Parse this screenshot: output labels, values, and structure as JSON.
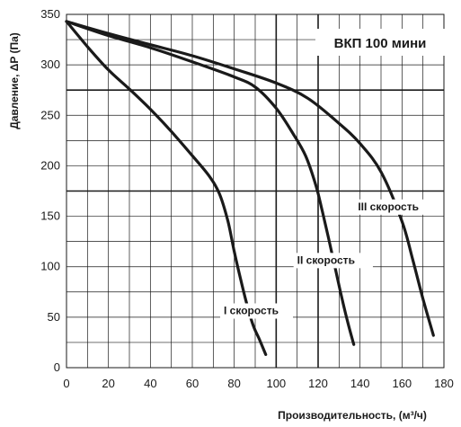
{
  "chart_data": {
    "type": "line",
    "title": "ВКП 100 мини",
    "xlabel": "Производительность, (м³/ч)",
    "ylabel": "Давление, ΔP (Па)",
    "xlim": [
      0,
      180
    ],
    "ylim": [
      0,
      350
    ],
    "x_ticks": [
      0,
      20,
      40,
      60,
      80,
      100,
      120,
      140,
      160,
      180
    ],
    "y_ticks": [
      0,
      50,
      100,
      150,
      200,
      250,
      300,
      350
    ],
    "grid": true,
    "reference_lines_y": [
      275,
      175
    ],
    "reference_lines_x": [
      100,
      120
    ],
    "colors": {
      "curve": "#1a1a1a",
      "grid": "#1a1a1a",
      "background": "#ffffff"
    },
    "series": [
      {
        "name": "I скорость",
        "x": [
          0,
          10,
          20,
          30,
          40,
          50,
          60,
          68,
          73,
          77,
          80,
          83,
          86,
          89,
          92,
          95
        ],
        "y": [
          343,
          318,
          295,
          276,
          256,
          234,
          210,
          190,
          172,
          145,
          115,
          88,
          63,
          42,
          28,
          13
        ]
      },
      {
        "name": "II скорость",
        "x": [
          0,
          20,
          40,
          60,
          80,
          90,
          100,
          108,
          114,
          119,
          122,
          125,
          128,
          131,
          134,
          137
        ],
        "y": [
          343,
          329,
          317,
          303,
          288,
          278,
          257,
          232,
          210,
          180,
          155,
          128,
          100,
          72,
          46,
          23
        ]
      },
      {
        "name": "III скорость",
        "x": [
          0,
          20,
          40,
          60,
          80,
          100,
          115,
          130,
          140,
          150,
          160,
          165,
          170,
          175
        ],
        "y": [
          343,
          331,
          320,
          309,
          296,
          282,
          267,
          242,
          222,
          194,
          145,
          108,
          68,
          32
        ]
      }
    ],
    "labels": [
      {
        "series": "I скорость",
        "text": "I скорость",
        "x": 75,
        "y": 53
      },
      {
        "series": "II скорость",
        "text": "II скорость",
        "x": 110,
        "y": 103
      },
      {
        "series": "III скорость",
        "text": "III скорость",
        "x": 139,
        "y": 156
      }
    ]
  }
}
